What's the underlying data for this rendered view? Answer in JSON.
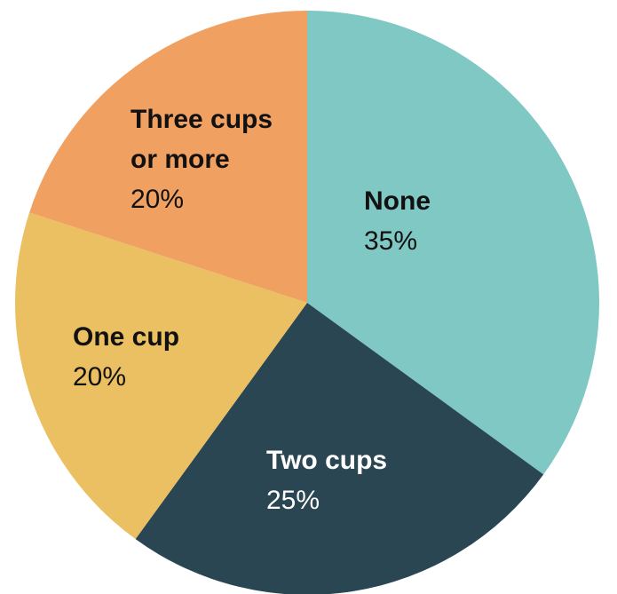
{
  "chart_data": {
    "type": "pie",
    "title": "",
    "start_angle_deg": 0,
    "direction": "clockwise",
    "slices": [
      {
        "name_lines": [
          "None"
        ],
        "value": 35,
        "value_label": "35%",
        "color": "#7fc8c4",
        "text_color": "#111111"
      },
      {
        "name_lines": [
          "Two cups"
        ],
        "value": 25,
        "value_label": "25%",
        "color": "#2a4653",
        "text_color": "#ffffff"
      },
      {
        "name_lines": [
          "One cup"
        ],
        "value": 20,
        "value_label": "20%",
        "color": "#ebc062",
        "text_color": "#111111"
      },
      {
        "name_lines": [
          "Three cups",
          "or more"
        ],
        "value": 20,
        "value_label": "20%",
        "color": "#f0a162",
        "text_color": "#111111"
      }
    ]
  }
}
